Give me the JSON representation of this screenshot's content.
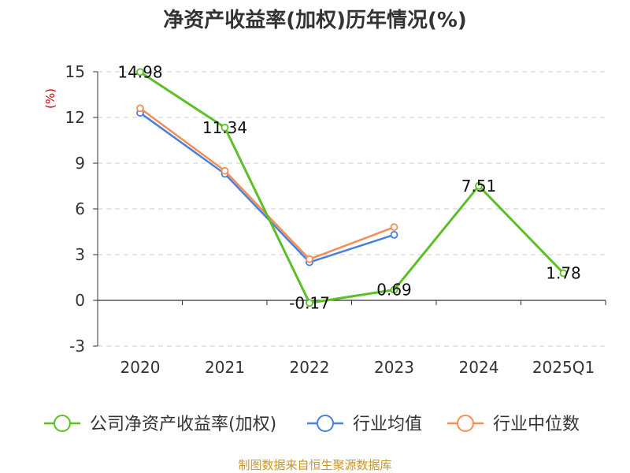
{
  "chart_data": {
    "type": "line",
    "title": "净资产收益率(加权)历年情况(%)",
    "ylabel": "(%)",
    "categories": [
      "2020",
      "2021",
      "2022",
      "2023",
      "2024",
      "2025Q1"
    ],
    "ylim": [
      -3,
      15
    ],
    "yticks": [
      15,
      12,
      9,
      6,
      3,
      0,
      -3
    ],
    "ytick_labels": [
      "15",
      "12",
      "9",
      "6",
      "3",
      "0",
      "-3"
    ],
    "grid": true,
    "legend_position": "bottom",
    "series": [
      {
        "name": "公司净资产收益率(加权)",
        "color": "#5cbf28",
        "values": [
          14.98,
          11.34,
          -0.17,
          0.69,
          7.51,
          1.78
        ],
        "labels": [
          "14.98",
          "11.34",
          "-0.17",
          "0.69",
          "7.51",
          "1.78"
        ]
      },
      {
        "name": "行业均值",
        "color": "#4a7fdb",
        "values": [
          12.3,
          8.3,
          2.5,
          4.3,
          null,
          null
        ]
      },
      {
        "name": "行业中位数",
        "color": "#f58d57",
        "values": [
          12.6,
          8.5,
          2.7,
          4.8,
          null,
          null
        ]
      }
    ]
  },
  "source_text": "制图数据来自恒生聚源数据库"
}
